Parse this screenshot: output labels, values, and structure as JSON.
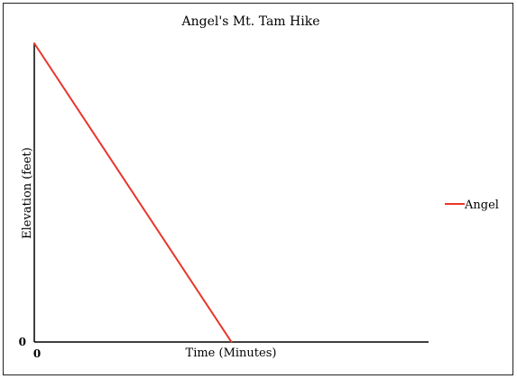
{
  "chart_data": {
    "type": "line",
    "title": "Angel's Mt. Tam Hike",
    "xlabel": "Time (Minutes)",
    "ylabel": "Elevation (feet)",
    "x_tick_labels": [
      {
        "value": 0,
        "label": "0"
      }
    ],
    "y_tick_labels": [
      {
        "value": 0,
        "label": "0"
      }
    ],
    "xlim": [
      0,
      100
    ],
    "ylim": [
      0,
      100
    ],
    "series": [
      {
        "name": "Angel",
        "color": "#e8362a",
        "points": [
          {
            "x": 0,
            "y": 100
          },
          {
            "x": 50,
            "y": 0
          }
        ]
      }
    ],
    "legend": {
      "placement": "right",
      "entries": [
        "Angel"
      ]
    },
    "grid": false
  }
}
